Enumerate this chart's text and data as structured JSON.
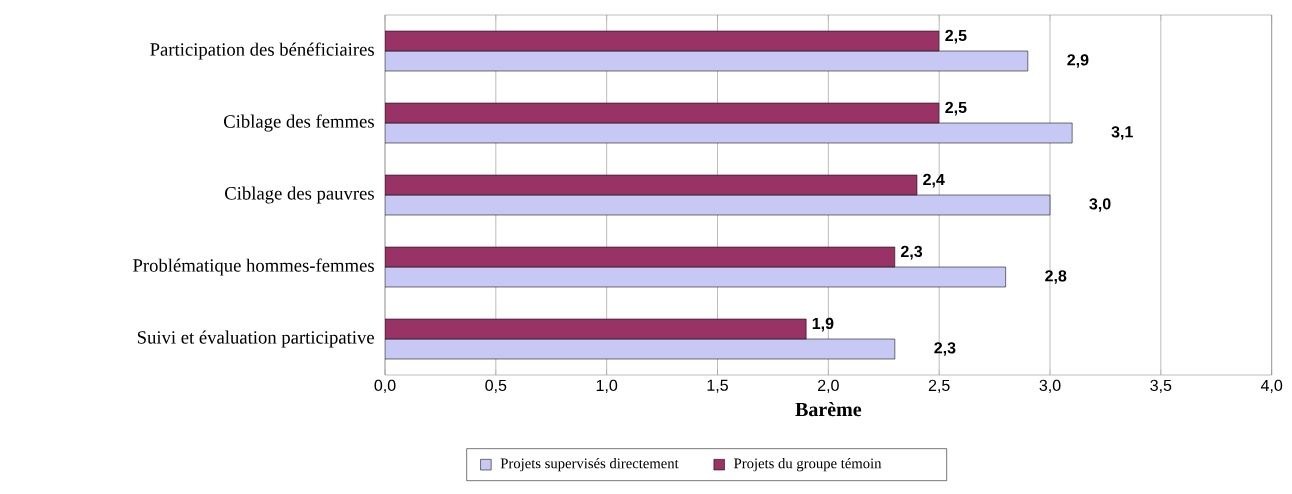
{
  "chart_data": {
    "type": "bar",
    "orientation": "horizontal",
    "xlabel": "Barème",
    "categories": [
      "Participation des bénéficiaires",
      "Ciblage des femmes",
      "Ciblage des pauvres",
      "Problématique hommes-femmes",
      "Suivi et évaluation participative"
    ],
    "series": [
      {
        "name": "Projets supervisés directement",
        "color": "#c8c8f4",
        "values": [
          2.9,
          3.1,
          3.0,
          2.8,
          2.3
        ],
        "value_labels": [
          "2,9",
          "3,1",
          "3,0",
          "2,8",
          "2,3"
        ]
      },
      {
        "name": "Projets du groupe témoin",
        "color": "#993366",
        "values": [
          2.5,
          2.5,
          2.4,
          2.3,
          1.9
        ],
        "value_labels": [
          "2,5",
          "2,5",
          "2,4",
          "2,3",
          "1,9"
        ]
      }
    ],
    "xlim": [
      0,
      4
    ],
    "xticks": [
      {
        "value": 0,
        "label": "0,0"
      },
      {
        "value": 0.5,
        "label": "0,5"
      },
      {
        "value": 1,
        "label": "1,0"
      },
      {
        "value": 1.5,
        "label": "1,5"
      },
      {
        "value": 2,
        "label": "2,0"
      },
      {
        "value": 2.5,
        "label": "2,5"
      },
      {
        "value": 3,
        "label": "3,0"
      },
      {
        "value": 3.5,
        "label": "3,5"
      },
      {
        "value": 4,
        "label": "4,0"
      }
    ],
    "grid": "x",
    "legend": "bottom"
  }
}
